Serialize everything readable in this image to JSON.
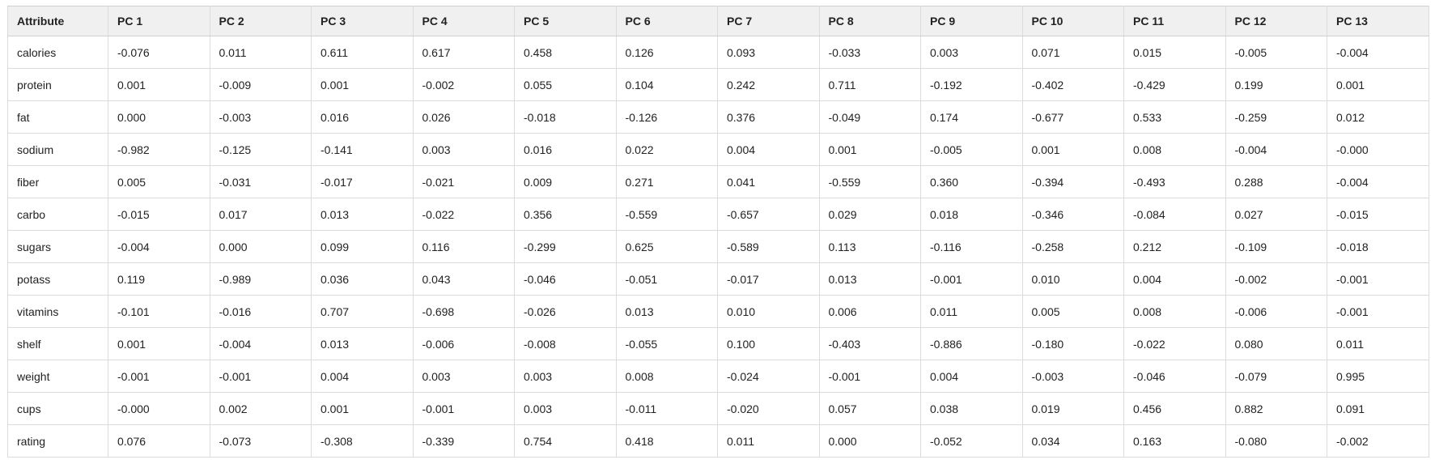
{
  "table": {
    "columns": [
      "Attribute",
      "PC 1",
      "PC 2",
      "PC 3",
      "PC 4",
      "PC 5",
      "PC 6",
      "PC 7",
      "PC 8",
      "PC 9",
      "PC 10",
      "PC 11",
      "PC 12",
      "PC 13"
    ],
    "rows": [
      [
        "calories",
        "-0.076",
        "0.011",
        "0.611",
        "0.617",
        "0.458",
        "0.126",
        "0.093",
        "-0.033",
        "0.003",
        "0.071",
        "0.015",
        "-0.005",
        "-0.004"
      ],
      [
        "protein",
        "0.001",
        "-0.009",
        "0.001",
        "-0.002",
        "0.055",
        "0.104",
        "0.242",
        "0.711",
        "-0.192",
        "-0.402",
        "-0.429",
        "0.199",
        "0.001"
      ],
      [
        "fat",
        "0.000",
        "-0.003",
        "0.016",
        "0.026",
        "-0.018",
        "-0.126",
        "0.376",
        "-0.049",
        "0.174",
        "-0.677",
        "0.533",
        "-0.259",
        "0.012"
      ],
      [
        "sodium",
        "-0.982",
        "-0.125",
        "-0.141",
        "0.003",
        "0.016",
        "0.022",
        "0.004",
        "0.001",
        "-0.005",
        "0.001",
        "0.008",
        "-0.004",
        "-0.000"
      ],
      [
        "fiber",
        "0.005",
        "-0.031",
        "-0.017",
        "-0.021",
        "0.009",
        "0.271",
        "0.041",
        "-0.559",
        "0.360",
        "-0.394",
        "-0.493",
        "0.288",
        "-0.004"
      ],
      [
        "carbo",
        "-0.015",
        "0.017",
        "0.013",
        "-0.022",
        "0.356",
        "-0.559",
        "-0.657",
        "0.029",
        "0.018",
        "-0.346",
        "-0.084",
        "0.027",
        "-0.015"
      ],
      [
        "sugars",
        "-0.004",
        "0.000",
        "0.099",
        "0.116",
        "-0.299",
        "0.625",
        "-0.589",
        "0.113",
        "-0.116",
        "-0.258",
        "0.212",
        "-0.109",
        "-0.018"
      ],
      [
        "potass",
        "0.119",
        "-0.989",
        "0.036",
        "0.043",
        "-0.046",
        "-0.051",
        "-0.017",
        "0.013",
        "-0.001",
        "0.010",
        "0.004",
        "-0.002",
        "-0.001"
      ],
      [
        "vitamins",
        "-0.101",
        "-0.016",
        "0.707",
        "-0.698",
        "-0.026",
        "0.013",
        "0.010",
        "0.006",
        "0.011",
        "0.005",
        "0.008",
        "-0.006",
        "-0.001"
      ],
      [
        "shelf",
        "0.001",
        "-0.004",
        "0.013",
        "-0.006",
        "-0.008",
        "-0.055",
        "0.100",
        "-0.403",
        "-0.886",
        "-0.180",
        "-0.022",
        "0.080",
        "0.011"
      ],
      [
        "weight",
        "-0.001",
        "-0.001",
        "0.004",
        "0.003",
        "0.003",
        "0.008",
        "-0.024",
        "-0.001",
        "0.004",
        "-0.003",
        "-0.046",
        "-0.079",
        "0.995"
      ],
      [
        "cups",
        "-0.000",
        "0.002",
        "0.001",
        "-0.001",
        "0.003",
        "-0.011",
        "-0.020",
        "0.057",
        "0.038",
        "0.019",
        "0.456",
        "0.882",
        "0.091"
      ],
      [
        "rating",
        "0.076",
        "-0.073",
        "-0.308",
        "-0.339",
        "0.754",
        "0.418",
        "0.011",
        "0.000",
        "-0.052",
        "0.034",
        "0.163",
        "-0.080",
        "-0.002"
      ]
    ]
  }
}
